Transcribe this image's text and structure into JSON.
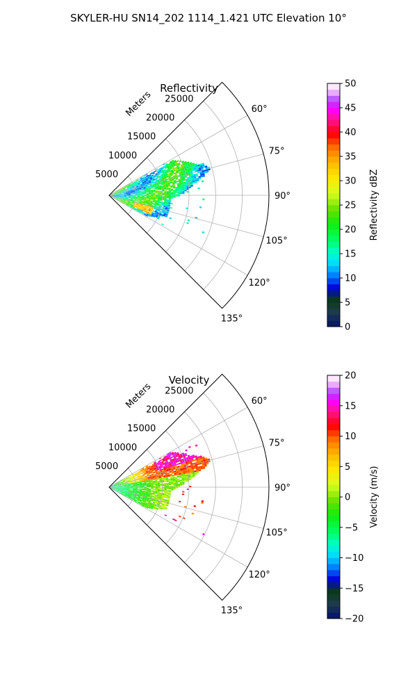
{
  "figure": {
    "title": "SKYLER-HU  SN14_202  1114_1.421 UTC Elevation 10°"
  },
  "chart_data": [
    {
      "type": "heatmap",
      "title": "Reflectivity",
      "radial_label": "Meters",
      "r_ticks": [
        "5000",
        "10000",
        "15000",
        "20000",
        "25000"
      ],
      "r_tick_values": [
        5000,
        10000,
        15000,
        20000,
        25000
      ],
      "r_max": 30000,
      "theta_ticks": [
        "60°",
        "75°",
        "90°",
        "105°",
        "120°",
        "135°"
      ],
      "theta_tick_values": [
        60,
        75,
        90,
        105,
        120,
        135
      ],
      "theta_range": [
        45,
        135
      ],
      "theta_direction": "clockwise-from-north",
      "grid": true,
      "colorbar": {
        "label": "Reflectivity dBZ",
        "range": [
          0,
          50
        ],
        "ticks": [
          "0",
          "5",
          "10",
          "15",
          "20",
          "25",
          "30",
          "35",
          "40",
          "45",
          "50"
        ],
        "tick_values": [
          0,
          5,
          10,
          15,
          20,
          25,
          30,
          35,
          40,
          45,
          50
        ]
      },
      "data_extent": {
        "range_max_approx": 20000,
        "azimuth_min_approx": 60,
        "azimuth_max_approx": 120,
        "typical_value_approx": 20,
        "max_value_approx": 36
      }
    },
    {
      "type": "heatmap",
      "title": "Velocity",
      "radial_label": "Meters",
      "r_ticks": [
        "5000",
        "10000",
        "15000",
        "20000",
        "25000"
      ],
      "r_tick_values": [
        5000,
        10000,
        15000,
        20000,
        25000
      ],
      "r_max": 30000,
      "theta_ticks": [
        "60°",
        "75°",
        "90°",
        "105°",
        "120°",
        "135°"
      ],
      "theta_tick_values": [
        60,
        75,
        90,
        105,
        120,
        135
      ],
      "theta_range": [
        45,
        135
      ],
      "theta_direction": "clockwise-from-north",
      "grid": true,
      "colorbar": {
        "label": "Velocity (m/s)",
        "range": [
          -20,
          20
        ],
        "ticks": [
          "−20",
          "−15",
          "−10",
          "−5",
          "0",
          "5",
          "10",
          "15",
          "20"
        ],
        "tick_values": [
          -20,
          -15,
          -10,
          -5,
          0,
          5,
          10,
          15,
          20
        ]
      },
      "data_extent": {
        "range_max_approx": 20000,
        "azimuth_min_approx": 60,
        "azimuth_max_approx": 120,
        "near_range_value_approx": -8,
        "far_range_value_approx": 10,
        "max_value_approx": 17
      }
    }
  ]
}
